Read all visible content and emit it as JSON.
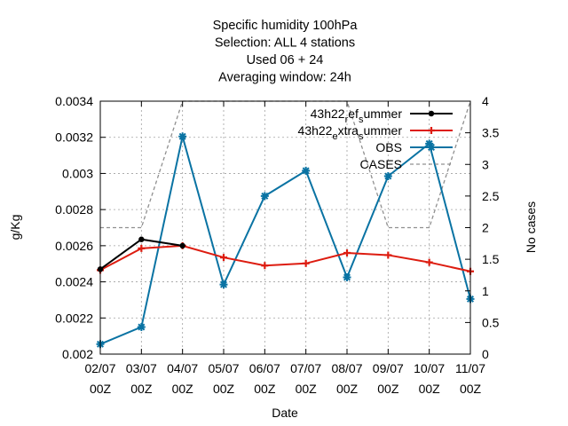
{
  "chart_data": {
    "type": "line",
    "title_lines": [
      "Specific humidity 100hPa",
      "Selection: ALL       4 stations",
      "Used  06  + 24",
      "Averaging window: 24h"
    ],
    "xlabel": "Date",
    "ylabel": "g/Kg",
    "y2label": "No cases",
    "categories": [
      [
        "02/07",
        "00Z"
      ],
      [
        "03/07",
        "00Z"
      ],
      [
        "04/07",
        "00Z"
      ],
      [
        "05/07",
        "00Z"
      ],
      [
        "06/07",
        "00Z"
      ],
      [
        "07/07",
        "00Z"
      ],
      [
        "08/07",
        "00Z"
      ],
      [
        "09/07",
        "00Z"
      ],
      [
        "10/07",
        "00Z"
      ],
      [
        "11/07",
        "00Z"
      ]
    ],
    "ylim": [
      0.002,
      0.0034
    ],
    "yticks": [
      "0.002",
      "0.0022",
      "0.0024",
      "0.0026",
      "0.0028",
      "0.003",
      "0.0032",
      "0.0034"
    ],
    "y2lim": [
      0,
      4
    ],
    "y2ticks": [
      "0",
      "0.5",
      "1",
      "1.5",
      "2",
      "2.5",
      "3",
      "3.5",
      "4"
    ],
    "grid": true,
    "legend_position": "top-right",
    "series": [
      {
        "name_parts": [
          [
            "43h22",
            "n"
          ],
          [
            "r",
            "sub"
          ],
          [
            "ef",
            "n"
          ],
          [
            "s",
            "sub"
          ],
          [
            "ummer",
            "n"
          ]
        ],
        "color": "#000000",
        "marker": "circle",
        "axis": "y",
        "values": [
          0.00247,
          0.002635,
          0.0026,
          null,
          null,
          null,
          null,
          null,
          null,
          null
        ]
      },
      {
        "name_parts": [
          [
            "43h22",
            "n"
          ],
          [
            "e",
            "sub"
          ],
          [
            "xtra",
            "n"
          ],
          [
            "s",
            "sub"
          ],
          [
            "ummer",
            "n"
          ]
        ],
        "color": "#dd1c10",
        "marker": "plus",
        "axis": "y",
        "values": [
          0.002465,
          0.002585,
          0.0026,
          0.002535,
          0.00249,
          0.002502,
          0.00256,
          0.002548,
          0.002508,
          0.002458
        ]
      },
      {
        "name_parts": [
          [
            "OBS",
            "n"
          ]
        ],
        "color": "#0a73a3",
        "marker": "star",
        "axis": "y",
        "values": [
          0.002055,
          0.00215,
          0.003205,
          0.002385,
          0.002875,
          0.003015,
          0.002425,
          0.002985,
          0.003165,
          0.002305
        ]
      },
      {
        "name_parts": [
          [
            "CASES",
            "n"
          ]
        ],
        "color": "#909090",
        "dashed": true,
        "axis": "y2",
        "values": [
          2,
          2,
          4,
          4,
          4,
          4,
          4,
          2,
          2,
          4
        ]
      }
    ]
  }
}
